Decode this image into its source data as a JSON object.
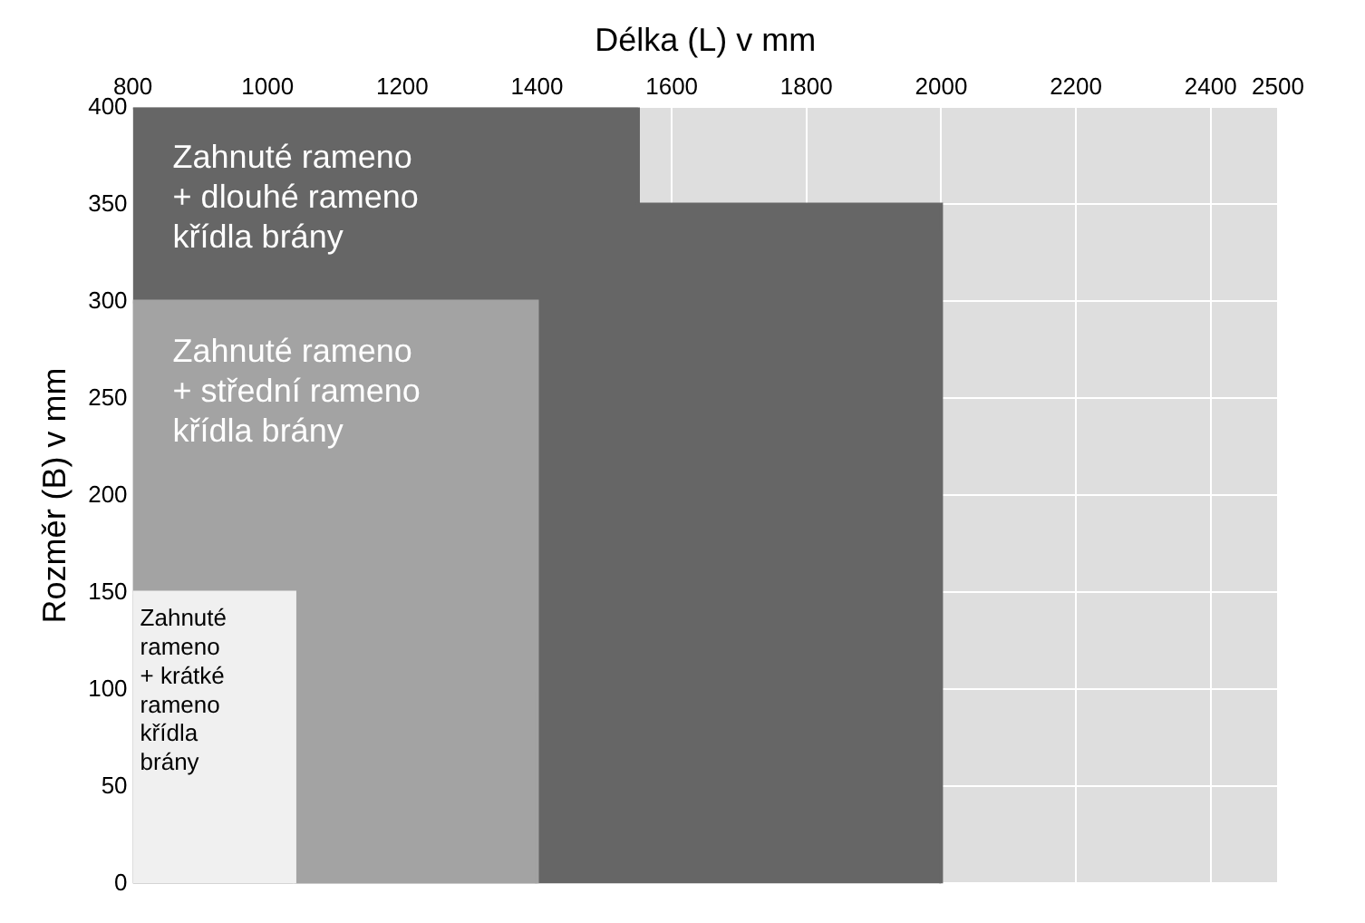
{
  "chart_data": {
    "type": "area",
    "xlabel": "Délka (L) v mm",
    "ylabel": "Rozměr (B) v mm",
    "xlim": [
      800,
      2500
    ],
    "xticks": [
      800,
      1000,
      1200,
      1400,
      1600,
      1800,
      2000,
      2200,
      2400,
      2500
    ],
    "ylim": [
      0,
      400
    ],
    "yticks": [
      0,
      50,
      100,
      150,
      200,
      250,
      300,
      350,
      400
    ],
    "grid": true,
    "legend": false,
    "series": [
      {
        "color": "#666666",
        "x": [
          800,
          1550,
          1550,
          2000,
          2000
        ],
        "values": [
          400,
          400,
          350,
          350,
          0
        ]
      },
      {
        "color": "#a3a3a3",
        "x": [
          800,
          1400,
          1400
        ],
        "values": [
          300,
          300,
          0
        ]
      },
      {
        "color": "#f0f0f0",
        "x": [
          800,
          1040,
          1040
        ],
        "values": [
          150,
          150,
          0
        ]
      }
    ],
    "annotations": [
      "Zahnuté rameno\n+ dlouhé rameno\nkřídla brány",
      "Zahnuté rameno\n+ střední rameno\nkřídla brány",
      "Zahnuté\nrameno\n+ krátké\nrameno\nkřídla\nbrány"
    ]
  }
}
